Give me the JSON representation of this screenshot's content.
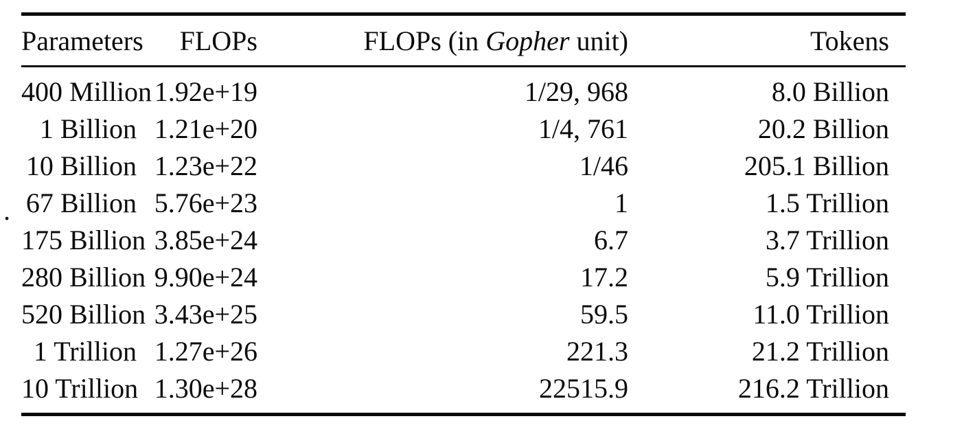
{
  "page": {
    "background_color": "#ffffff",
    "text_color": "#0b0b0b",
    "rule_color": "#0a0a0a"
  },
  "stray_dot": ".",
  "table": {
    "header": {
      "parameters": "Parameters",
      "flops": "FLOPs",
      "gopher_prefix": "FLOPs (in ",
      "gopher_italic": "Gopher",
      "gopher_suffix": " unit)",
      "tokens": "Tokens"
    },
    "rows": [
      {
        "parameters": "400 Million",
        "flops": "1.92e+19",
        "gopher": "1/29, 968",
        "tokens": "8.0 Billion"
      },
      {
        "parameters": "1 Billion",
        "flops": "1.21e+20",
        "gopher": "1/4, 761",
        "tokens": "20.2 Billion"
      },
      {
        "parameters": "10 Billion",
        "flops": "1.23e+22",
        "gopher": "1/46",
        "tokens": "205.1 Billion"
      },
      {
        "parameters": "67 Billion",
        "flops": "5.76e+23",
        "gopher": "1",
        "tokens": "1.5 Trillion"
      },
      {
        "parameters": "175 Billion",
        "flops": "3.85e+24",
        "gopher": "6.7",
        "tokens": "3.7 Trillion"
      },
      {
        "parameters": "280 Billion",
        "flops": "9.90e+24",
        "gopher": "17.2",
        "tokens": "5.9 Trillion"
      },
      {
        "parameters": "520 Billion",
        "flops": "3.43e+25",
        "gopher": "59.5",
        "tokens": "11.0 Trillion"
      },
      {
        "parameters": "1 Trillion",
        "flops": "1.27e+26",
        "gopher": "221.3",
        "tokens": "21.2 Trillion"
      },
      {
        "parameters": "10 Trillion",
        "flops": "1.30e+28",
        "gopher": "22515.9",
        "tokens": "216.2 Trillion"
      }
    ]
  }
}
